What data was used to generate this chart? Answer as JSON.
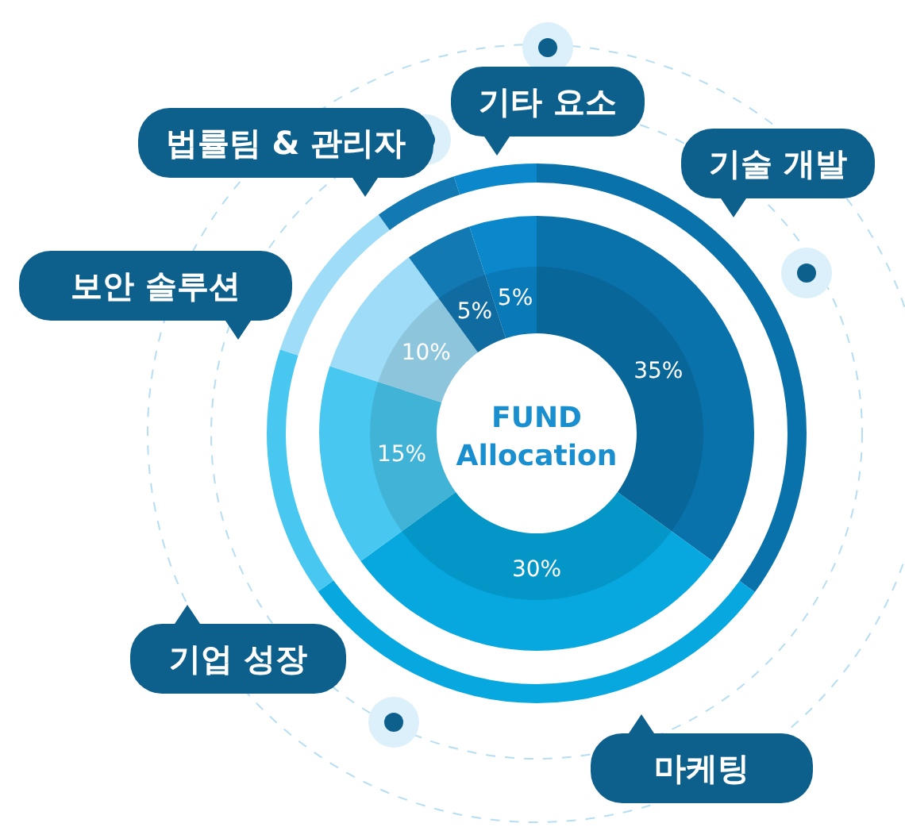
{
  "chart_data": {
    "type": "donut",
    "title": "FUND Allocation",
    "categories": [
      "기술 개발",
      "마케팅",
      "기업 성장",
      "보안 솔루션",
      "법률팀 & 관리자",
      "기타 요소"
    ],
    "values": [
      35,
      30,
      15,
      10,
      5,
      5
    ],
    "colors": [
      "#0a72aa",
      "#06a8df",
      "#48c8f0",
      "#9edcf7",
      "#1279b3",
      "#0b88cc"
    ],
    "value_labels": [
      "35%",
      "30%",
      "15%",
      "10%",
      "5%",
      "5%"
    ]
  }
}
